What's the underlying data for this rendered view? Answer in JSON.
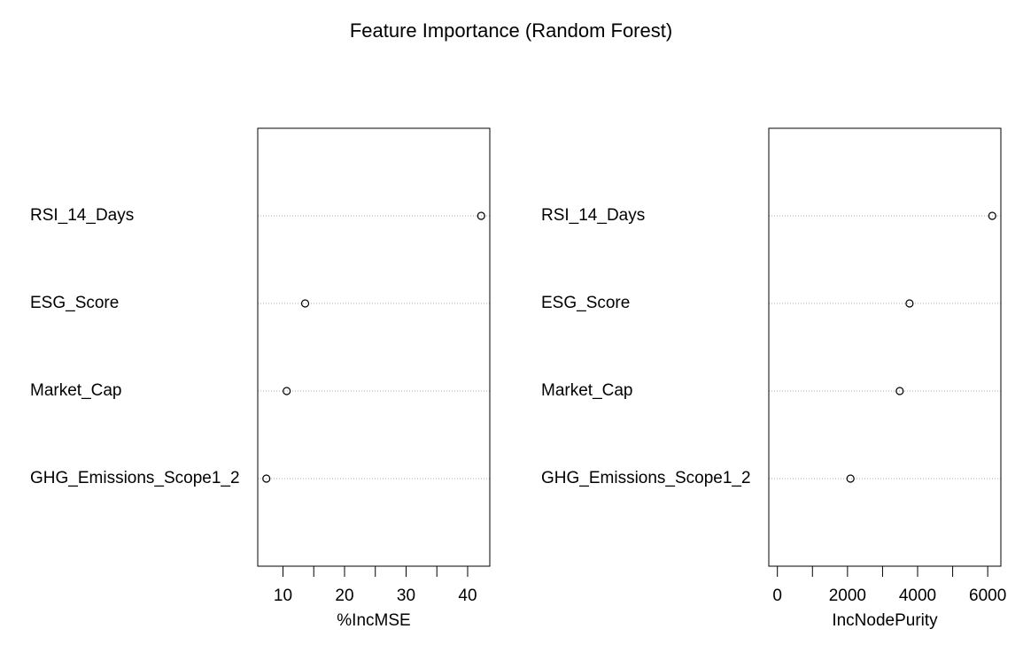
{
  "title": "Feature Importance (Random Forest)",
  "chart_data": [
    {
      "type": "dot",
      "xlabel": "%IncMSE",
      "categories": [
        "RSI_14_Days",
        "ESG_Score",
        "Market_Cap",
        "GHG_Emissions_Scope1_2"
      ],
      "values": [
        42.2,
        13.6,
        10.6,
        7.3
      ],
      "color": "#000000",
      "xlim": [
        5.9,
        43.6
      ],
      "xticks": [
        10,
        20,
        30,
        40
      ],
      "xminorticks": [
        15,
        25,
        35
      ],
      "grid": true
    },
    {
      "type": "dot",
      "xlabel": "IncNodePurity",
      "categories": [
        "RSI_14_Days",
        "ESG_Score",
        "Market_Cap",
        "GHG_Emissions_Scope1_2"
      ],
      "values": [
        6130,
        3770,
        3490,
        2085
      ],
      "color": "#000000",
      "xlim": [
        -245,
        6375
      ],
      "xticks": [
        0,
        2000,
        4000,
        6000
      ],
      "xminorticks": [
        1000,
        3000,
        5000
      ],
      "grid": true
    }
  ]
}
